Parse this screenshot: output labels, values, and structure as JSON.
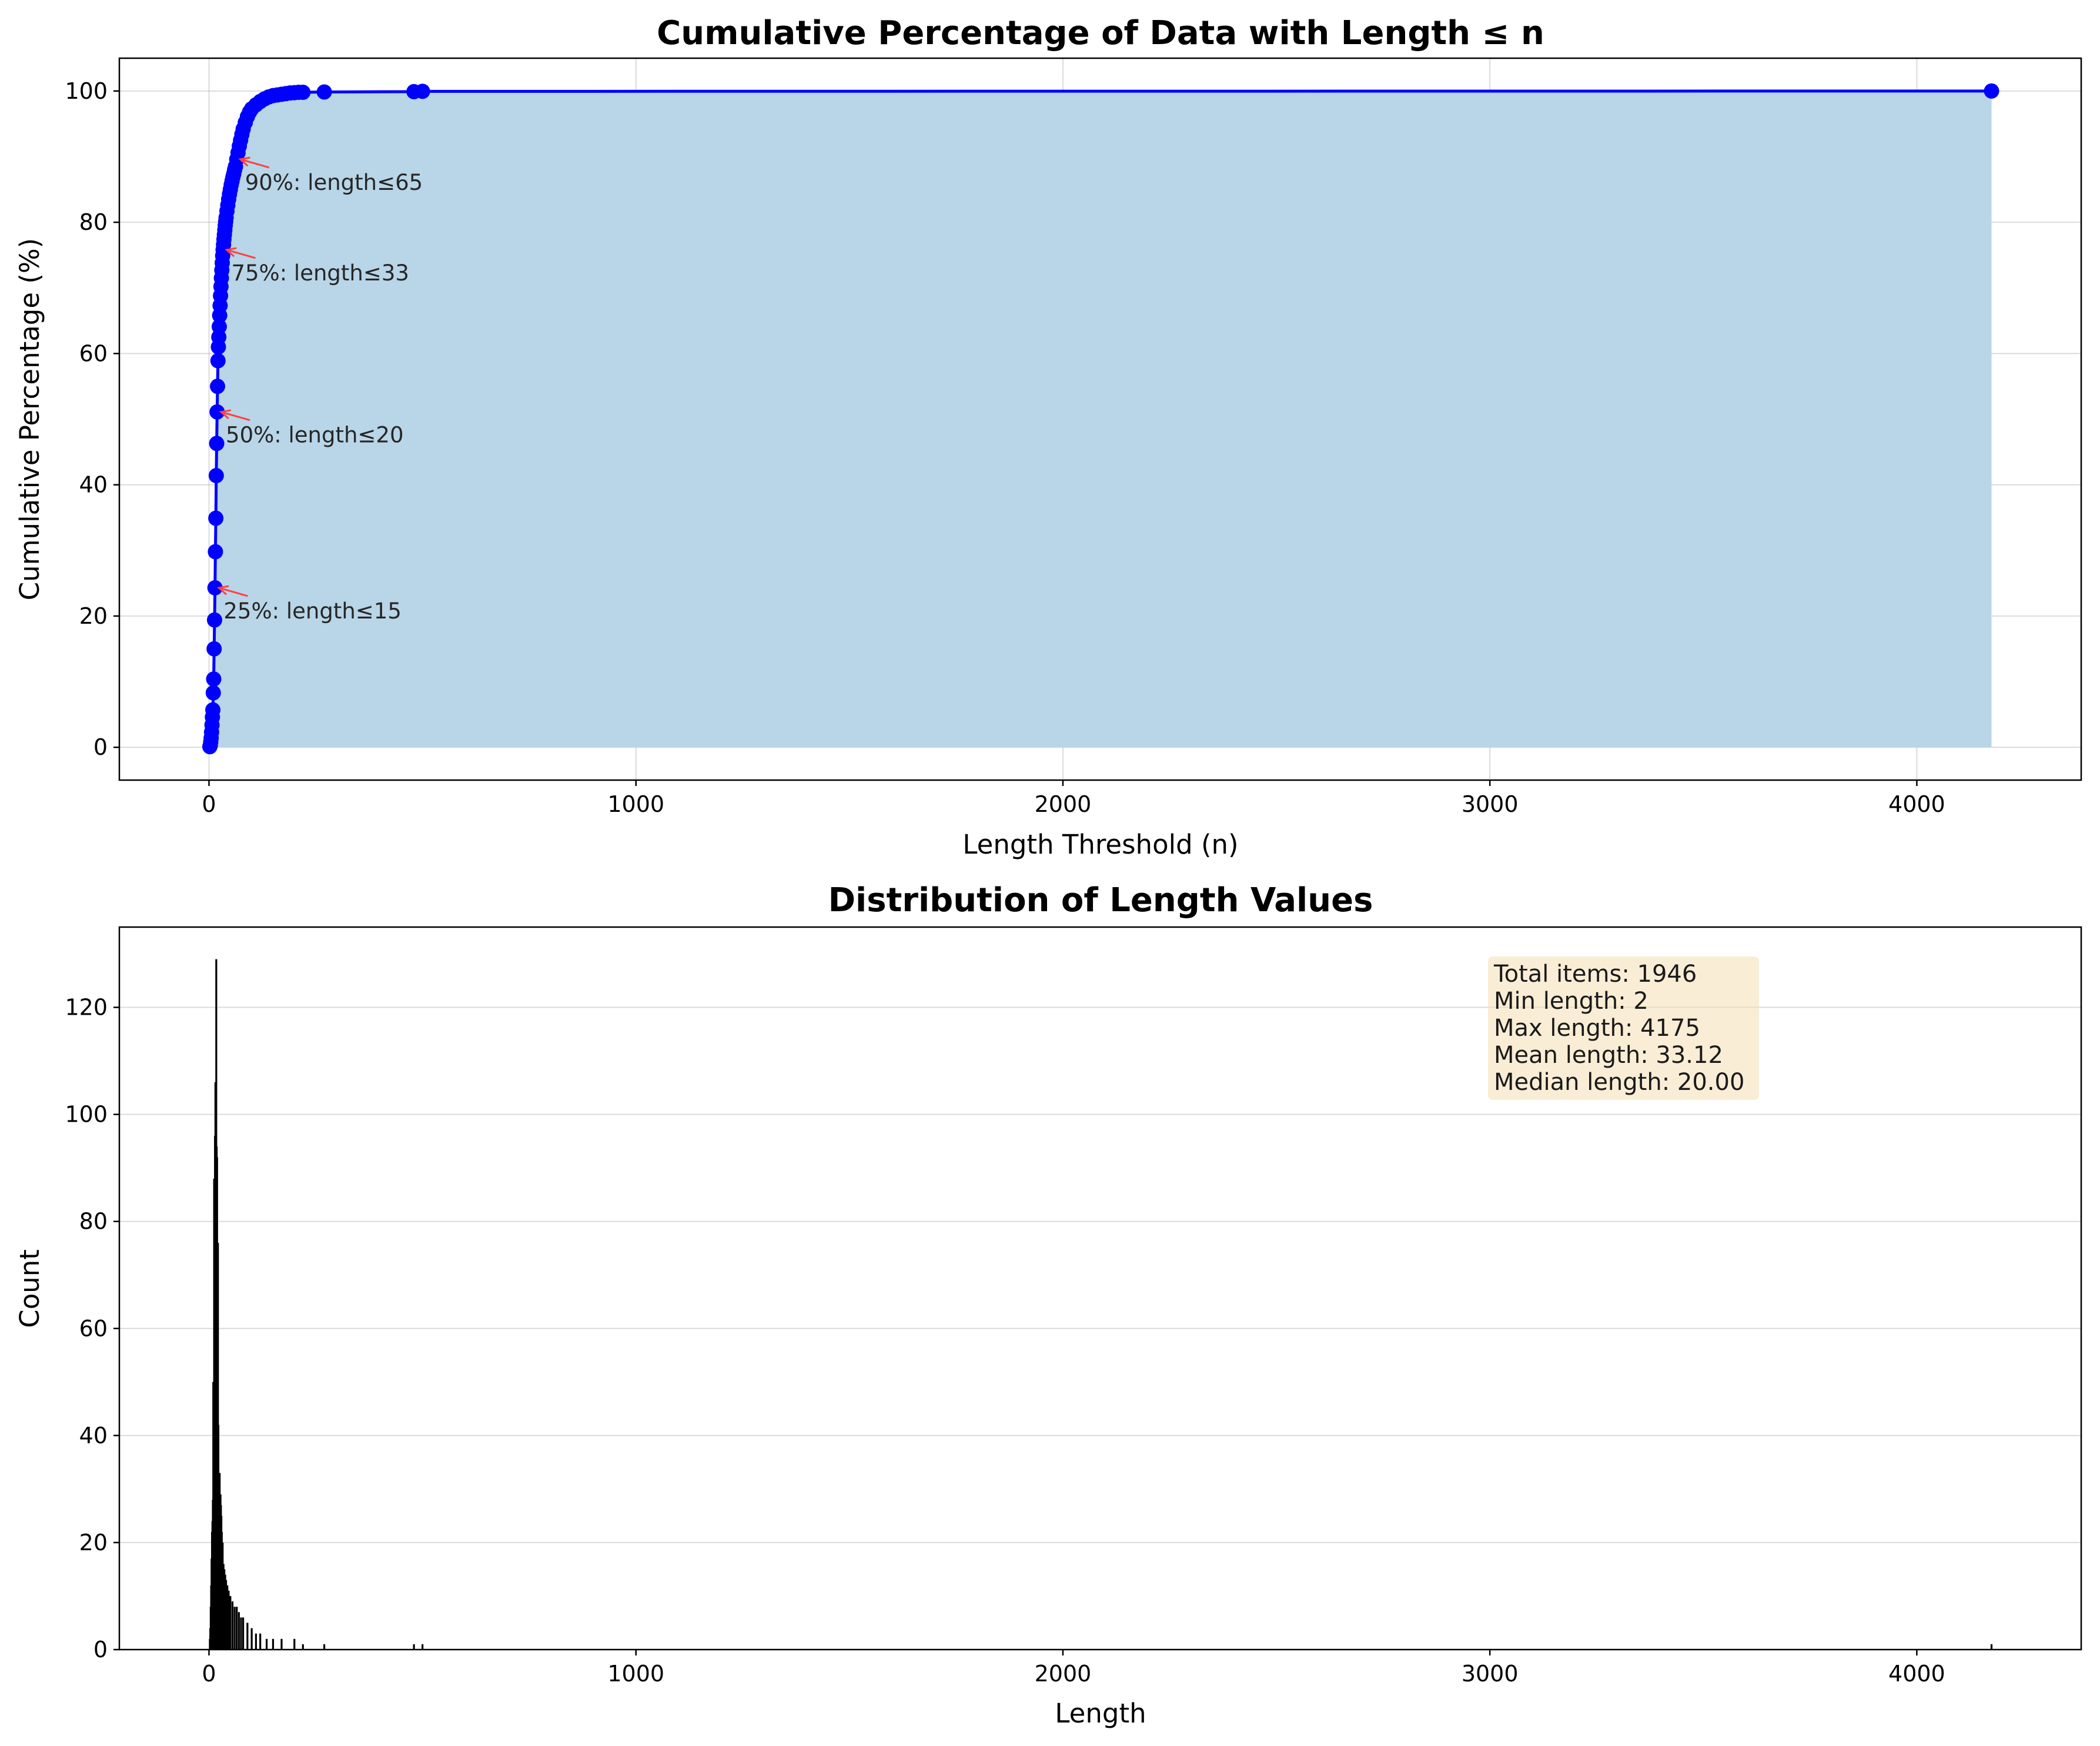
{
  "chart_data": [
    {
      "type": "line",
      "title": "Cumulative Percentage of Data with Length ≤ n",
      "xlabel": "Length Threshold (n)",
      "ylabel": "Cumulative Percentage (%)",
      "xlim": [
        -210,
        4385
      ],
      "ylim": [
        -5,
        105
      ],
      "xticks": [
        0,
        1000,
        2000,
        3000,
        4000
      ],
      "yticks": [
        0,
        20,
        40,
        60,
        80,
        100
      ],
      "grid": true,
      "fill_under": true,
      "colors": {
        "line": "#0000ff",
        "fill": "#b9d5e8",
        "annotation_arrow": "#ff4040"
      },
      "series": [
        {
          "x": [
            2,
            3,
            4,
            5,
            6,
            7,
            8,
            9,
            10,
            11,
            12,
            13,
            14,
            15,
            16,
            17,
            18,
            19,
            20,
            21,
            22,
            23,
            24,
            25,
            26,
            27,
            28,
            29,
            30,
            31,
            32,
            33,
            34,
            35,
            36,
            37,
            38,
            39,
            40,
            42,
            44,
            46,
            48,
            50,
            52,
            54,
            56,
            58,
            60,
            62,
            65,
            68,
            71,
            74,
            77,
            80,
            85,
            90,
            95,
            100,
            110,
            120,
            130,
            140,
            150,
            160,
            170,
            180,
            190,
            200,
            210,
            220,
            270,
            480,
            500,
            4175
          ],
          "y": [
            0.1,
            0.3,
            0.8,
            1.4,
            2.3,
            3.4,
            4.6,
            5.7,
            8.3,
            10.4,
            15.0,
            19.4,
            24.3,
            29.8,
            34.9,
            41.4,
            46.3,
            51.1,
            55.0,
            58.9,
            61.0,
            62.5,
            64.1,
            65.8,
            67.3,
            68.8,
            70.2,
            71.5,
            72.7,
            73.8,
            74.9,
            75.8,
            76.6,
            77.4,
            78.1,
            78.8,
            79.5,
            80.1,
            80.7,
            81.7,
            82.6,
            83.5,
            84.3,
            85.0,
            85.7,
            86.3,
            86.9,
            87.4,
            88.0,
            88.5,
            89.6,
            90.6,
            91.6,
            92.5,
            93.4,
            94.2,
            95.2,
            96.1,
            96.8,
            97.3,
            97.9,
            98.4,
            98.8,
            99.1,
            99.3,
            99.4,
            99.5,
            99.6,
            99.7,
            99.75,
            99.8,
            99.8,
            99.85,
            99.9,
            99.95,
            100.0
          ]
        }
      ],
      "annotations": [
        {
          "text": "25%: length≤15",
          "x": 15,
          "y": 24.3
        },
        {
          "text": "50%: length≤20",
          "x": 20,
          "y": 51.1
        },
        {
          "text": "75%: length≤33",
          "x": 33,
          "y": 75.8
        },
        {
          "text": "90%: length≤65",
          "x": 65,
          "y": 89.6
        }
      ]
    },
    {
      "type": "bar",
      "title": "Distribution of Length Values",
      "xlabel": "Length",
      "ylabel": "Count",
      "xlim": [
        -210,
        4385
      ],
      "ylim": [
        0,
        135
      ],
      "xticks": [
        0,
        1000,
        2000,
        3000,
        4000
      ],
      "yticks": [
        0,
        20,
        40,
        60,
        80,
        100,
        120
      ],
      "grid": true,
      "grid_axis": "y",
      "colors": {
        "bar": "#000000",
        "stats_box": "#f5deb3"
      },
      "bins_x": [
        2,
        3,
        4,
        5,
        6,
        7,
        8,
        9,
        10,
        11,
        12,
        13,
        14,
        15,
        16,
        17,
        18,
        19,
        20,
        21,
        22,
        23,
        24,
        25,
        26,
        27,
        28,
        29,
        30,
        32,
        34,
        36,
        38,
        40,
        43,
        46,
        50,
        55,
        60,
        65,
        70,
        75,
        80,
        90,
        100,
        110,
        120,
        135,
        150,
        170,
        200,
        220,
        270,
        480,
        500,
        4175
      ],
      "values": [
        2,
        4,
        8,
        12,
        17,
        22,
        24,
        28,
        50,
        40,
        88,
        86,
        96,
        106,
        99,
        129,
        94,
        92,
        75,
        76,
        42,
        30,
        31,
        33,
        28,
        29,
        27,
        25,
        22,
        20,
        16,
        15,
        14,
        13,
        12,
        11,
        10,
        9,
        8,
        8,
        7,
        6,
        6,
        5,
        4,
        3,
        3,
        2,
        2,
        2,
        2,
        1,
        1,
        1,
        1,
        1
      ],
      "stats_box": {
        "location": "upper-right",
        "lines": [
          "Total items: 1946",
          "Min length: 2",
          "Max length: 4175",
          "Mean length: 33.12",
          "Median length: 20.00"
        ]
      }
    }
  ]
}
